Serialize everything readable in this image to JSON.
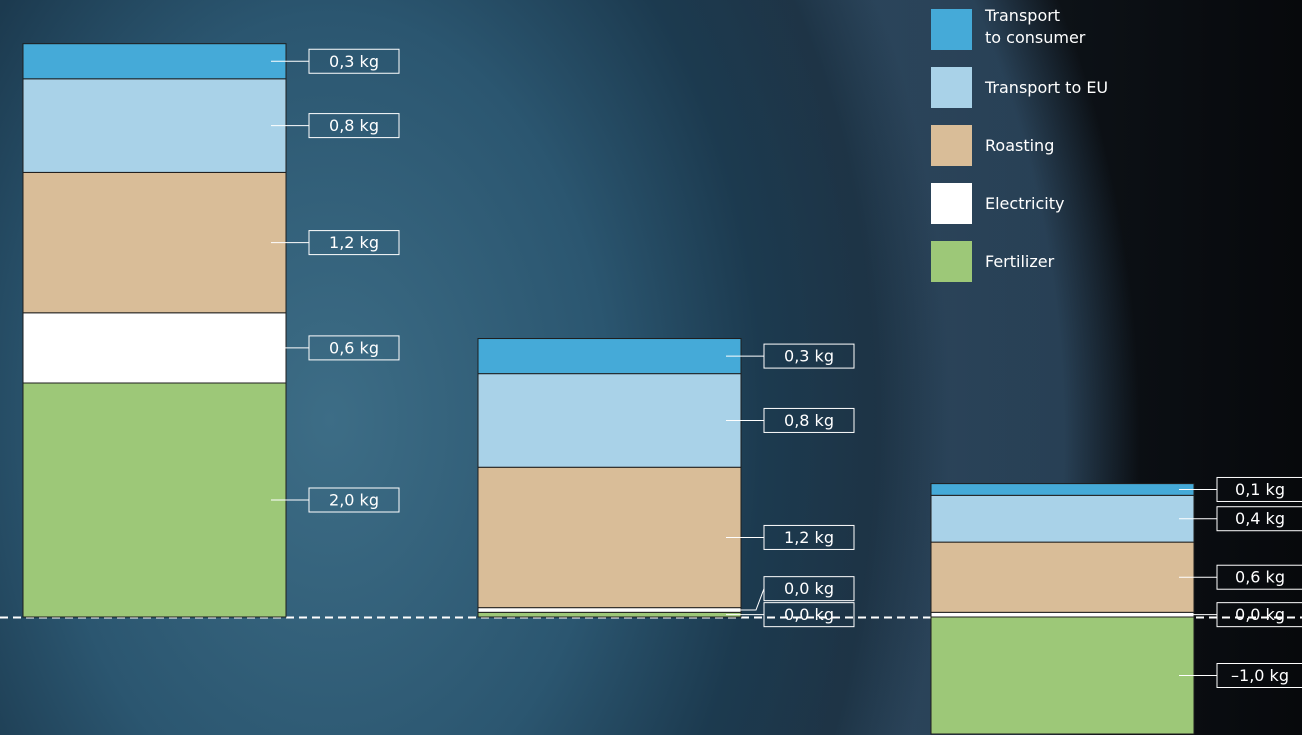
{
  "chart_data": {
    "type": "stacked-bar",
    "categories": [
      null,
      null,
      null
    ],
    "series": [
      {
        "name": "Transport\nto consumer",
        "color": "#45aad8",
        "values": [
          0.3,
          0.3,
          0.1
        ],
        "value_labels": [
          "0,3 kg",
          "0,3 kg",
          "0,1 kg"
        ]
      },
      {
        "name": "Transport to EU",
        "color": "#a9d2e8",
        "values": [
          0.8,
          0.8,
          0.4
        ],
        "value_labels": [
          "0,8 kg",
          "0,8 kg",
          "0,4 kg"
        ]
      },
      {
        "name": "Roasting",
        "color": "#d9bd98",
        "values": [
          1.2,
          1.2,
          0.6
        ],
        "value_labels": [
          "1,2 kg",
          "1,2 kg",
          "0,6 kg"
        ]
      },
      {
        "name": "Electricity",
        "color": "#ffffff",
        "values": [
          0.6,
          0.04,
          0.04
        ],
        "value_labels": [
          "0,6 kg",
          "0,0 kg",
          "0,0 kg"
        ]
      },
      {
        "name": "Fertilizer",
        "color": "#9dc878",
        "values": [
          2.0,
          0.04,
          -1.0
        ],
        "value_labels": [
          "2,0 kg",
          "0,0 kg",
          "–1,0 kg"
        ]
      }
    ]
  }
}
